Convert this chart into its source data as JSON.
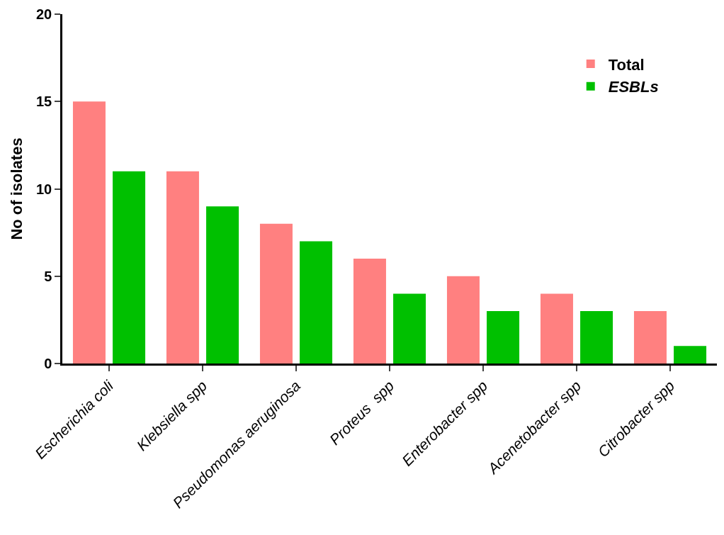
{
  "chart_data": {
    "type": "bar",
    "ylabel": "No of isolates",
    "categories": [
      "Escherichia coli",
      "Klebsiella spp",
      "Pseudomonas aeruginosa",
      "Proteus  spp",
      "Enterobacter spp",
      "Acenetobacter spp",
      "Citrobacter spp"
    ],
    "series": [
      {
        "name": "Total",
        "color": "#ff8080",
        "values": [
          15,
          11,
          8,
          6,
          5,
          4,
          3
        ]
      },
      {
        "name": "ESBLs",
        "color": "#00c000",
        "values": [
          11,
          9,
          7,
          4,
          3,
          3,
          1
        ]
      }
    ],
    "ylim": [
      0,
      20
    ],
    "yticks": [
      0,
      5,
      10,
      15,
      20
    ],
    "grid": false,
    "legend": "top right"
  }
}
